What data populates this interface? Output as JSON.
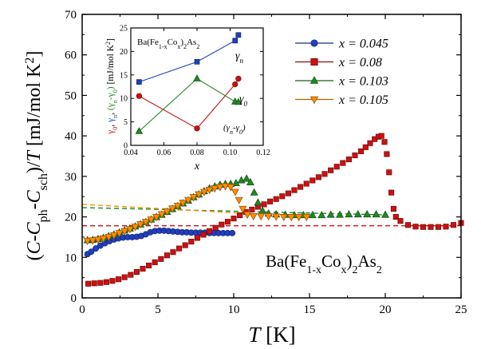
{
  "chart_data": {
    "type": "scatter",
    "main": {
      "xlabel": "T [K]",
      "ylabel": "(C-C_ph-C_sch)/T [mJ/mol K^2]",
      "xlim": [
        0,
        25
      ],
      "ylim": [
        0,
        70
      ],
      "xticks": [
        "0",
        "5",
        "10",
        "15",
        "20",
        "25"
      ],
      "yticks": [
        "0",
        "10",
        "20",
        "30",
        "40",
        "50",
        "60",
        "70"
      ],
      "compound": "Ba(Fe1-xCox)2As2",
      "legend_position": "top-right",
      "series": [
        {
          "name": "x = 0.045",
          "color": "#1f3fbf",
          "marker": "circle",
          "points": [
            [
              0.35,
              10.8
            ],
            [
              0.6,
              11.4
            ],
            [
              0.9,
              12.2
            ],
            [
              1.2,
              12.9
            ],
            [
              1.5,
              13.5
            ],
            [
              1.8,
              14.0
            ],
            [
              2.1,
              14.4
            ],
            [
              2.4,
              14.7
            ],
            [
              2.7,
              14.9
            ],
            [
              3.0,
              15.0
            ],
            [
              3.3,
              15.0
            ],
            [
              3.6,
              15.1
            ],
            [
              3.9,
              15.3
            ],
            [
              4.2,
              15.7
            ],
            [
              4.5,
              16.2
            ],
            [
              4.8,
              16.5
            ],
            [
              5.1,
              16.6
            ],
            [
              5.4,
              16.6
            ],
            [
              5.7,
              16.5
            ],
            [
              6.0,
              16.4
            ],
            [
              6.3,
              16.3
            ],
            [
              6.6,
              16.2
            ],
            [
              6.9,
              16.2
            ],
            [
              7.2,
              16.1
            ],
            [
              7.5,
              16.1
            ],
            [
              7.8,
              16.1
            ],
            [
              8.1,
              16.1
            ],
            [
              8.4,
              16.0
            ],
            [
              8.7,
              16.0
            ],
            [
              9.0,
              16.0
            ],
            [
              9.3,
              16.0
            ],
            [
              9.6,
              16.0
            ],
            [
              9.9,
              16.0
            ]
          ]
        },
        {
          "name": "x = 0.08",
          "color": "#cc1111",
          "marker": "square",
          "points": [
            [
              0.4,
              3.5
            ],
            [
              0.8,
              3.6
            ],
            [
              1.2,
              3.7
            ],
            [
              1.6,
              3.9
            ],
            [
              2.0,
              4.2
            ],
            [
              2.4,
              4.6
            ],
            [
              2.8,
              5.1
            ],
            [
              3.2,
              5.7
            ],
            [
              3.6,
              6.4
            ],
            [
              4.0,
              7.2
            ],
            [
              4.4,
              8.0
            ],
            [
              4.8,
              8.8
            ],
            [
              5.2,
              9.6
            ],
            [
              5.6,
              10.5
            ],
            [
              6.0,
              11.3
            ],
            [
              6.4,
              12.2
            ],
            [
              6.8,
              13.0
            ],
            [
              7.2,
              13.9
            ],
            [
              7.6,
              14.8
            ],
            [
              8.0,
              15.6
            ],
            [
              8.4,
              16.5
            ],
            [
              8.8,
              17.3
            ],
            [
              9.2,
              18.1
            ],
            [
              9.6,
              18.8
            ],
            [
              10.0,
              19.6
            ],
            [
              10.4,
              20.4
            ],
            [
              10.8,
              21.2
            ],
            [
              11.2,
              21.8
            ],
            [
              11.6,
              22.5
            ],
            [
              12.0,
              23.1
            ],
            [
              12.4,
              23.8
            ],
            [
              12.8,
              24.4
            ],
            [
              13.2,
              25.1
            ],
            [
              13.6,
              25.8
            ],
            [
              14.0,
              26.6
            ],
            [
              14.4,
              27.4
            ],
            [
              14.8,
              28.2
            ],
            [
              15.2,
              29.0
            ],
            [
              15.6,
              29.8
            ],
            [
              16.0,
              30.6
            ],
            [
              16.4,
              31.5
            ],
            [
              16.8,
              32.4
            ],
            [
              17.2,
              33.3
            ],
            [
              17.6,
              34.2
            ],
            [
              18.0,
              35.2
            ],
            [
              18.4,
              36.2
            ],
            [
              18.7,
              37.2
            ],
            [
              19.0,
              38.2
            ],
            [
              19.3,
              39.2
            ],
            [
              19.55,
              39.8
            ],
            [
              19.75,
              40.0
            ],
            [
              19.95,
              38.5
            ],
            [
              20.1,
              35.5
            ],
            [
              20.25,
              31.0
            ],
            [
              20.4,
              26.0
            ],
            [
              20.55,
              22.0
            ],
            [
              20.7,
              20.0
            ],
            [
              21.0,
              19.0
            ],
            [
              21.5,
              18.0
            ],
            [
              22.0,
              17.6
            ],
            [
              22.5,
              17.5
            ],
            [
              23.0,
              17.5
            ],
            [
              23.5,
              17.5
            ],
            [
              24.0,
              17.6
            ],
            [
              24.5,
              18.0
            ],
            [
              25.0,
              18.5
            ]
          ]
        },
        {
          "name": "x = 0.103",
          "color": "#228822",
          "marker": "triangle-up",
          "points": [
            [
              0.35,
              14.2
            ],
            [
              0.7,
              14.3
            ],
            [
              1.05,
              14.5
            ],
            [
              1.4,
              14.8
            ],
            [
              1.75,
              15.2
            ],
            [
              2.1,
              15.6
            ],
            [
              2.45,
              16.1
            ],
            [
              2.8,
              16.6
            ],
            [
              3.15,
              17.1
            ],
            [
              3.5,
              17.6
            ],
            [
              3.85,
              18.1
            ],
            [
              4.2,
              18.7
            ],
            [
              4.55,
              19.3
            ],
            [
              4.9,
              19.9
            ],
            [
              5.25,
              20.5
            ],
            [
              5.6,
              21.2
            ],
            [
              5.95,
              21.9
            ],
            [
              6.3,
              22.6
            ],
            [
              6.65,
              23.3
            ],
            [
              7.0,
              24.0
            ],
            [
              7.35,
              24.8
            ],
            [
              7.7,
              25.5
            ],
            [
              8.05,
              26.3
            ],
            [
              8.4,
              27.0
            ],
            [
              8.75,
              27.5
            ],
            [
              9.1,
              27.9
            ],
            [
              9.45,
              28.1
            ],
            [
              9.8,
              28.1
            ],
            [
              10.15,
              28.3
            ],
            [
              10.5,
              29.0
            ],
            [
              10.85,
              29.4
            ],
            [
              11.1,
              28.5
            ],
            [
              11.35,
              26.0
            ],
            [
              11.6,
              23.5
            ],
            [
              11.9,
              21.5
            ],
            [
              12.3,
              20.8
            ],
            [
              12.8,
              20.6
            ],
            [
              13.4,
              20.5
            ],
            [
              14.0,
              20.4
            ],
            [
              14.6,
              20.4
            ],
            [
              15.2,
              20.4
            ],
            [
              15.8,
              20.4
            ],
            [
              16.4,
              20.5
            ],
            [
              17.0,
              20.5
            ],
            [
              17.6,
              20.6
            ],
            [
              18.2,
              20.6
            ],
            [
              18.8,
              20.6
            ],
            [
              19.4,
              20.6
            ],
            [
              20.0,
              20.5
            ]
          ]
        },
        {
          "name": "x = 0.105",
          "color": "#ff8c00",
          "marker": "triangle-down",
          "points": [
            [
              0.35,
              14.1
            ],
            [
              0.7,
              14.2
            ],
            [
              1.05,
              14.4
            ],
            [
              1.4,
              14.7
            ],
            [
              1.75,
              15.1
            ],
            [
              2.1,
              15.5
            ],
            [
              2.45,
              16.0
            ],
            [
              2.8,
              16.5
            ],
            [
              3.15,
              17.0
            ],
            [
              3.5,
              17.6
            ],
            [
              3.85,
              18.2
            ],
            [
              4.2,
              18.8
            ],
            [
              4.55,
              19.4
            ],
            [
              4.9,
              20.0
            ],
            [
              5.25,
              20.7
            ],
            [
              5.6,
              21.4
            ],
            [
              5.95,
              22.1
            ],
            [
              6.3,
              22.8
            ],
            [
              6.65,
              23.5
            ],
            [
              7.0,
              24.2
            ],
            [
              7.35,
              24.9
            ],
            [
              7.7,
              25.6
            ],
            [
              8.05,
              26.2
            ],
            [
              8.4,
              26.7
            ],
            [
              8.75,
              27.1
            ],
            [
              9.1,
              27.4
            ],
            [
              9.45,
              27.6
            ],
            [
              9.8,
              27.4
            ],
            [
              10.1,
              26.2
            ],
            [
              10.35,
              24.2
            ],
            [
              10.6,
              22.0
            ],
            [
              10.9,
              20.6
            ],
            [
              11.3,
              20.2
            ],
            [
              11.8,
              20.2
            ],
            [
              12.3,
              20.2
            ],
            [
              12.8,
              20.1
            ],
            [
              13.3,
              20.0
            ],
            [
              13.8,
              20.0
            ],
            [
              14.3,
              20.0
            ],
            [
              14.8,
              20.0
            ]
          ]
        }
      ],
      "dashed_fits": [
        {
          "color": "#1f3fbf",
          "x": [
            0.3,
            4.5
          ],
          "y": [
            14.0,
            16.0
          ]
        },
        {
          "color": "#cc1111",
          "x": [
            0.0,
            25.0
          ],
          "y": [
            17.8,
            17.8
          ]
        },
        {
          "color": "#228822",
          "x": [
            0.0,
            20.0
          ],
          "y": [
            22.3,
            20.5
          ]
        },
        {
          "color": "#ff8c00",
          "x": [
            0.0,
            15.0
          ],
          "y": [
            23.1,
            20.0
          ]
        }
      ]
    },
    "inset": {
      "compound": "Ba(Fe1-xCox)2As2",
      "xlabel": "x",
      "ylabel": "γ0, γn, (γn-γ0) [mJ/mol K^2]",
      "xlim": [
        0.04,
        0.12
      ],
      "ylim": [
        0,
        25
      ],
      "xticks": [
        "0.04",
        "0.06",
        "0.08",
        "0.10",
        "0.12"
      ],
      "yticks": [
        "0",
        "5",
        "10",
        "15",
        "20",
        "25"
      ],
      "series": [
        {
          "name": "γn",
          "color": "#1f3fbf",
          "marker": "square",
          "x": [
            0.045,
            0.08,
            0.103,
            0.105
          ],
          "y": [
            13.5,
            17.8,
            22.3,
            23.5
          ]
        },
        {
          "name": "γ0",
          "color": "#cc1111",
          "marker": "circle",
          "x": [
            0.045,
            0.08,
            0.103,
            0.105
          ],
          "y": [
            10.5,
            3.6,
            13.0,
            14.2
          ]
        },
        {
          "name": "(γn-γ0)",
          "color": "#228822",
          "marker": "triangle-up",
          "x": [
            0.045,
            0.08,
            0.103,
            0.105
          ],
          "y": [
            3.0,
            14.2,
            9.3,
            9.2
          ]
        }
      ]
    }
  }
}
